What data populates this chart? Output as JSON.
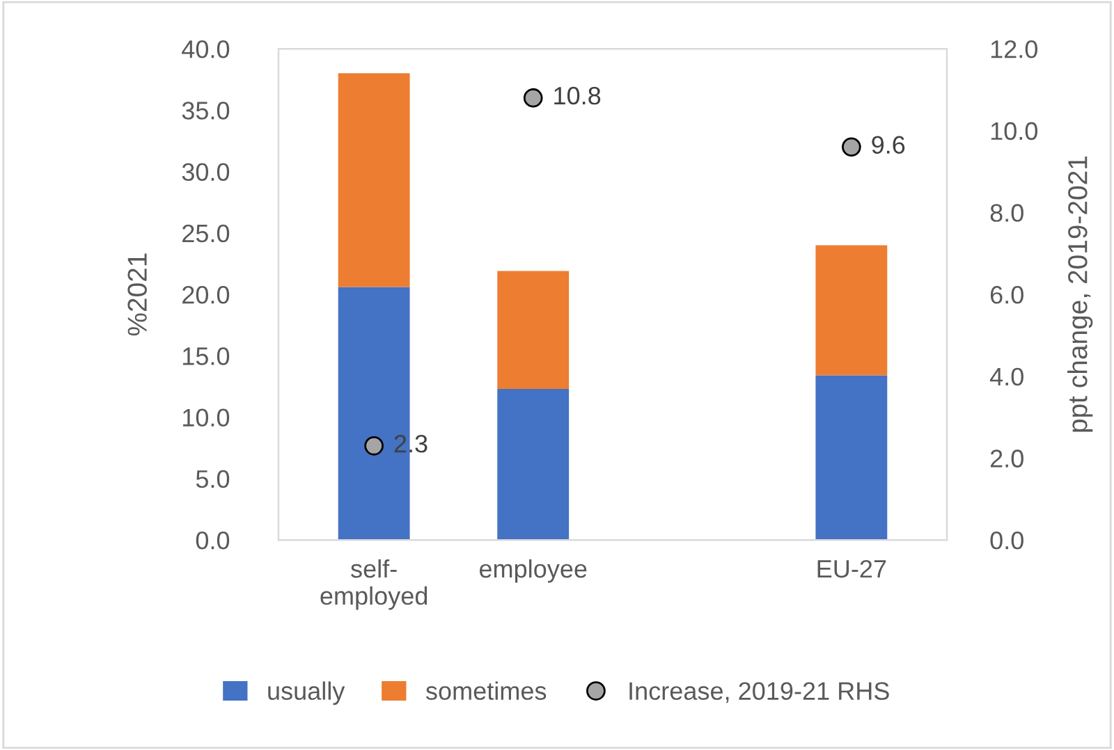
{
  "chart_data": {
    "type": "bar",
    "stacked": true,
    "ylabel": "%2021",
    "y2label": "ppt change, 2019-2021",
    "categories": [
      "self-\nemployed",
      "employee",
      null,
      "EU-27"
    ],
    "series": [
      {
        "name": "usually",
        "color": "#4472c4",
        "values": [
          20.6,
          12.3,
          null,
          13.4
        ]
      },
      {
        "name": "sometimes",
        "color": "#ed7d31",
        "values": [
          17.4,
          9.6,
          null,
          10.6
        ]
      },
      {
        "name": "Increase, 2019-21 RHS",
        "type": "scatter",
        "axis": "y2",
        "color": "#a5a5a5",
        "marker": "circle",
        "values": [
          2.3,
          10.8,
          null,
          9.6
        ],
        "value_labels": [
          "2.3",
          "10.8",
          null,
          "9.6"
        ]
      }
    ],
    "ylim": [
      0,
      40
    ],
    "yticks": [
      {
        "value": 0,
        "label": "0.0"
      },
      {
        "value": 5,
        "label": "5.0"
      },
      {
        "value": 10,
        "label": "10.0"
      },
      {
        "value": 15,
        "label": "15.0"
      },
      {
        "value": 20,
        "label": "20.0"
      },
      {
        "value": 25,
        "label": "25.0"
      },
      {
        "value": 30,
        "label": "30.0"
      },
      {
        "value": 35,
        "label": "35.0"
      },
      {
        "value": 40,
        "label": "40.0"
      }
    ],
    "y2lim": [
      0,
      12
    ],
    "y2ticks": [
      {
        "value": 0,
        "label": "0.0"
      },
      {
        "value": 2,
        "label": "2.0"
      },
      {
        "value": 4,
        "label": "4.0"
      },
      {
        "value": 6,
        "label": "6.0"
      },
      {
        "value": 8,
        "label": "8.0"
      },
      {
        "value": 10,
        "label": "10.0"
      },
      {
        "value": 12,
        "label": "12.0"
      }
    ],
    "grid": false,
    "legend": "bottom"
  }
}
